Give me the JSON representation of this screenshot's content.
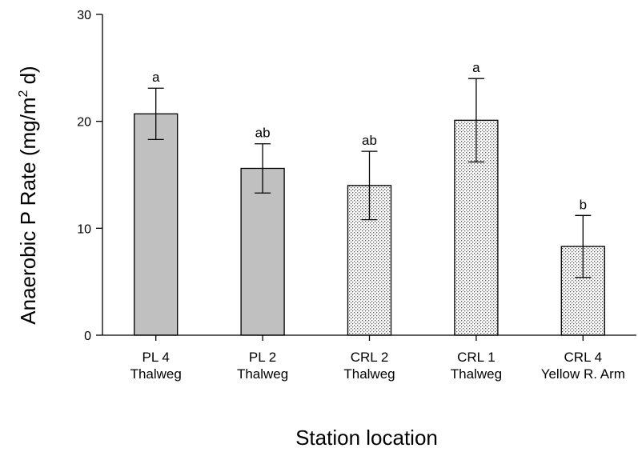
{
  "chart_data": {
    "type": "bar",
    "title": "",
    "xlabel": "Station location",
    "ylabel": "Anaerobic P Rate (mg/m",
    "ylabel_sup": "2",
    "ylabel_end": " d)",
    "ylim": [
      0,
      30
    ],
    "yticks": [
      "0",
      "10",
      "20",
      "30"
    ],
    "categories": [
      [
        "PL 4",
        "Thalweg"
      ],
      [
        "PL 2",
        "Thalweg"
      ],
      [
        "CRL 2",
        "Thalweg"
      ],
      [
        "CRL 1",
        "Thalweg"
      ],
      [
        "CRL 4",
        "Yellow R. Arm"
      ]
    ],
    "values": [
      20.7,
      15.6,
      14.0,
      20.1,
      8.3
    ],
    "errors": [
      2.4,
      2.3,
      3.2,
      3.9,
      2.9
    ],
    "significance": [
      "a",
      "ab",
      "ab",
      "a",
      "b"
    ],
    "fills": [
      "solid-gray",
      "solid-gray",
      "dotted",
      "dotted",
      "dotted"
    ],
    "colors": {
      "solid_gray": "#c0c0c0",
      "axis": "#000000"
    },
    "grid": false,
    "legend": "none"
  }
}
